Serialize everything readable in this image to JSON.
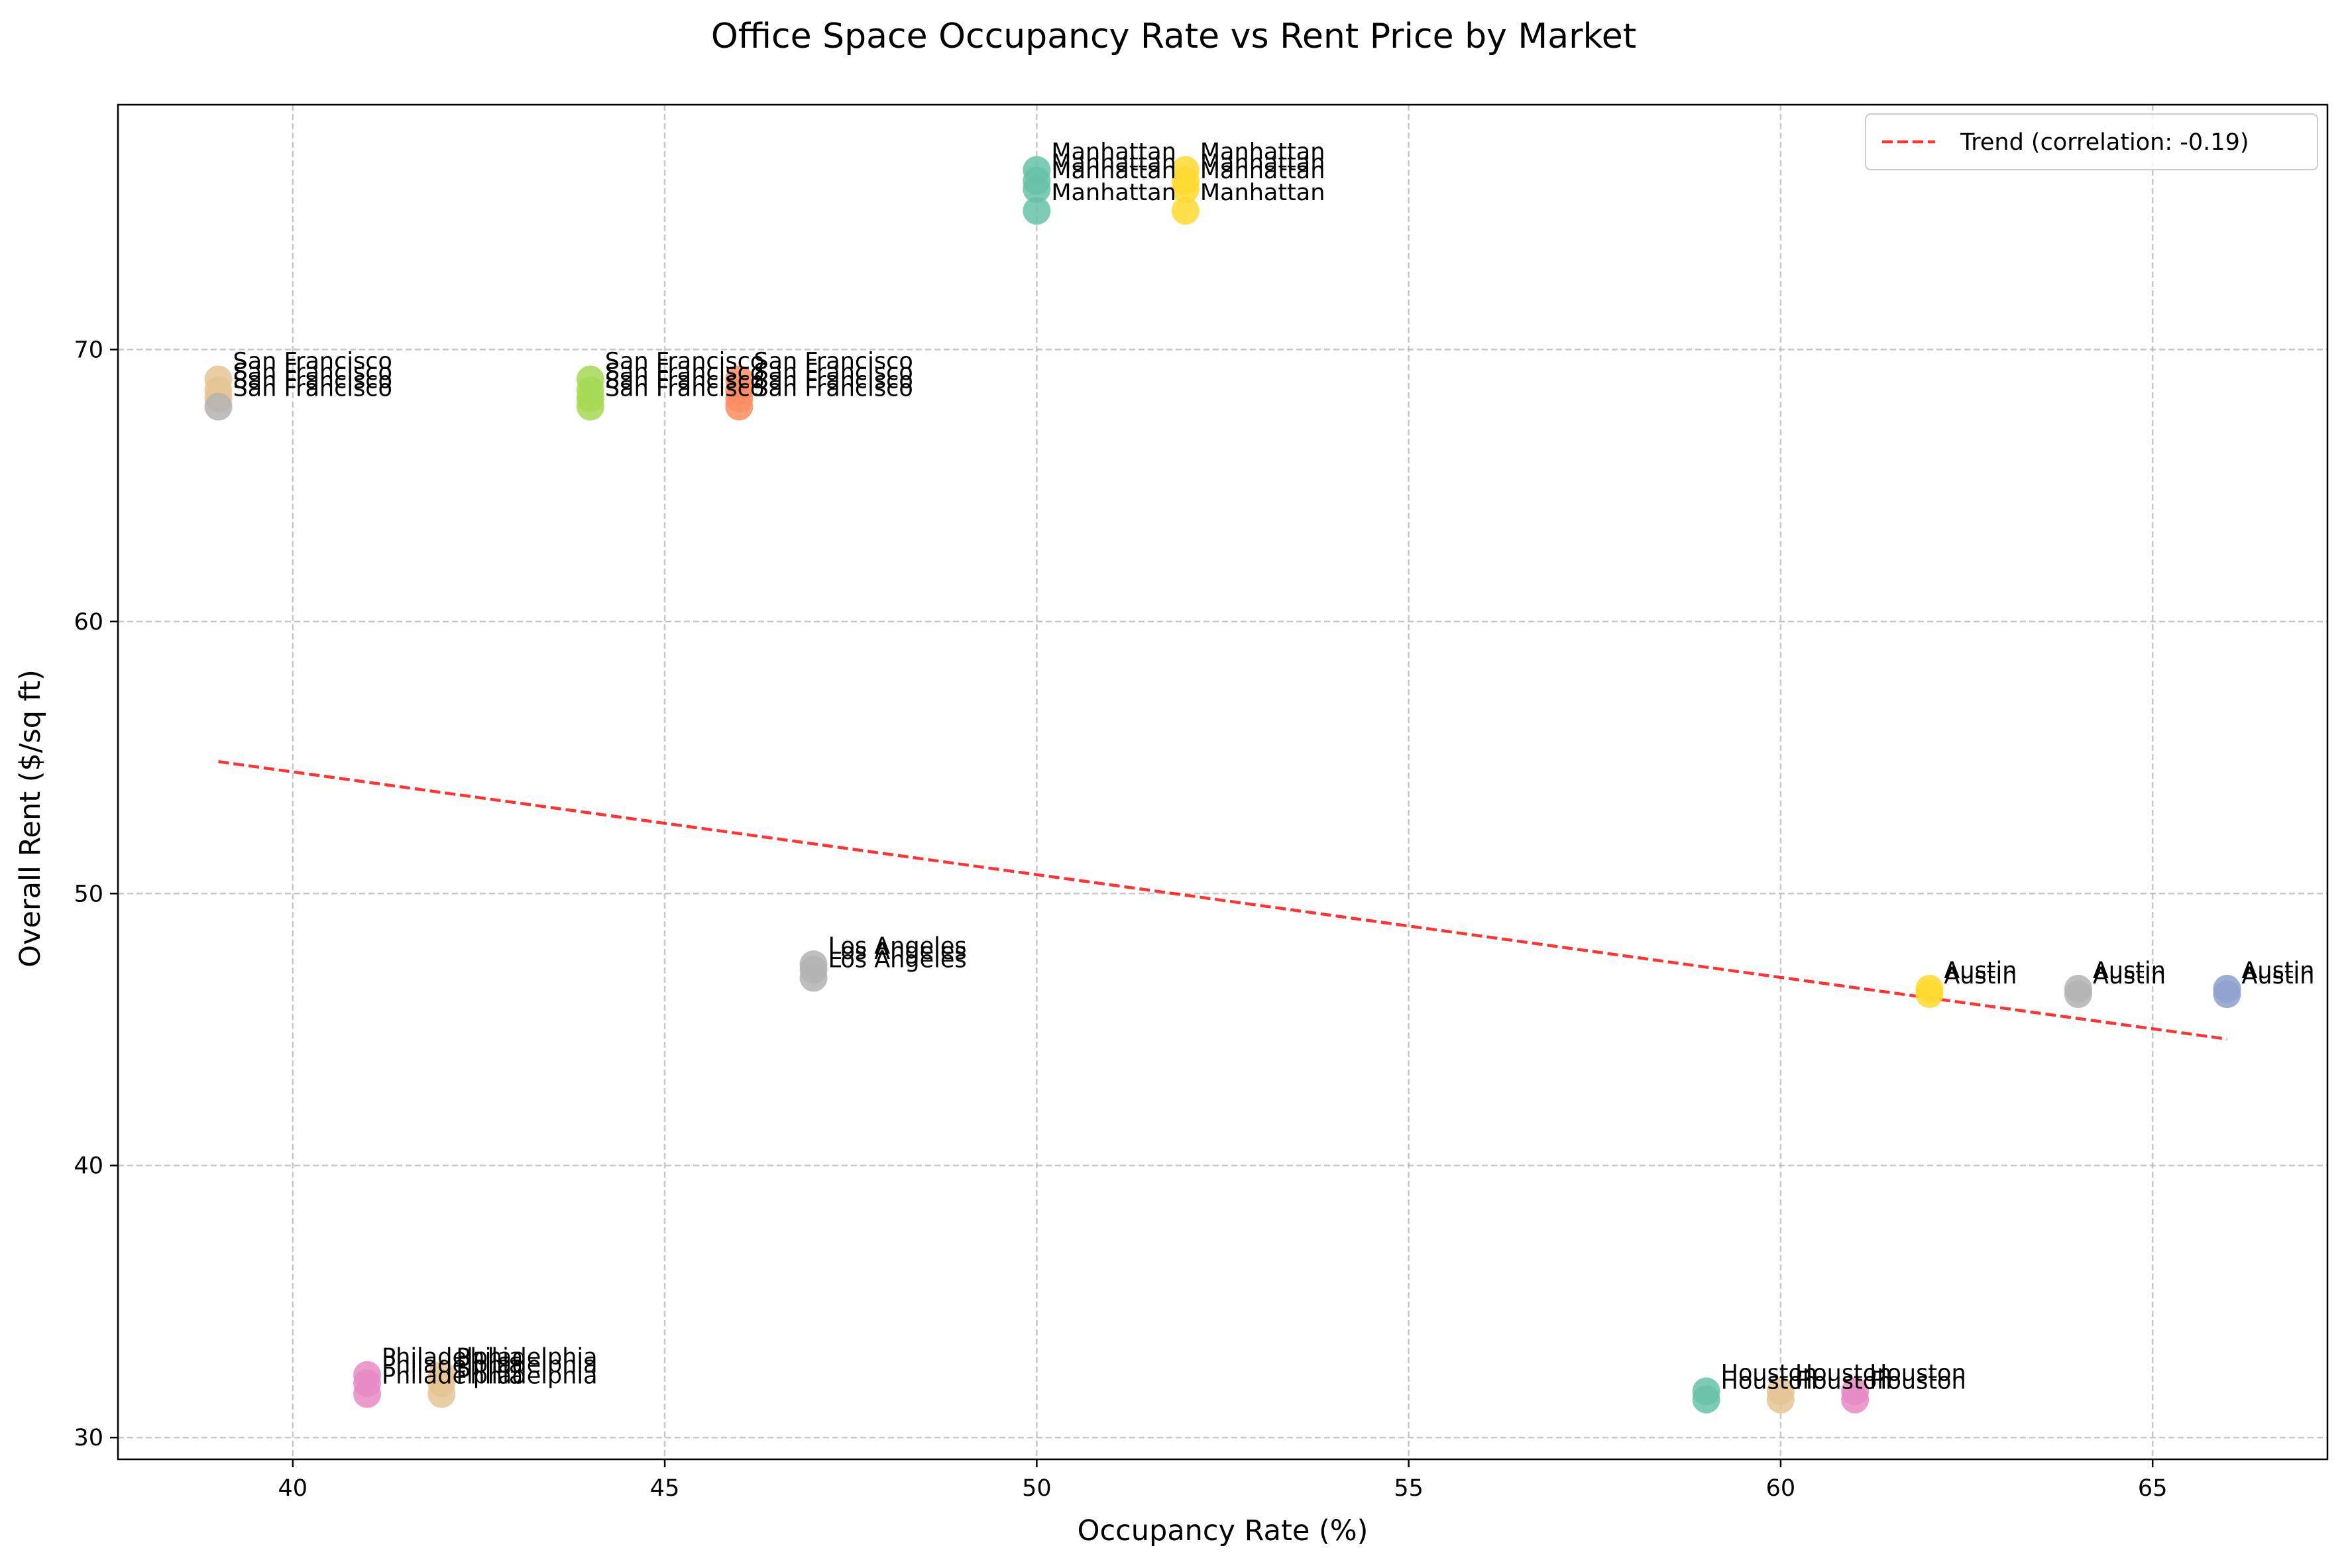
{
  "chart_data": {
    "type": "scatter",
    "title": "Office Space Occupancy Rate vs Rent Price by Market",
    "xlabel": "Occupancy Rate (%)",
    "ylabel": "Overall Rent ($/sq ft)",
    "xlim": [
      37.65,
      67.35
    ],
    "ylim": [
      29.2,
      79.0
    ],
    "xticks": [
      40,
      45,
      50,
      55,
      60,
      65
    ],
    "yticks": [
      30,
      40,
      50,
      60,
      70
    ],
    "grid": true,
    "legend_position": "top-right",
    "trend": {
      "label": "Trend (correlation: -0.19)",
      "x": [
        39,
        66
      ],
      "y": [
        54.85,
        44.65
      ],
      "color": "#ff0000"
    },
    "points": [
      {
        "x": 39,
        "y": 68.9,
        "label": "San Francisco",
        "color": "#e5c494"
      },
      {
        "x": 39,
        "y": 68.5,
        "label": "San Francisco",
        "color": "#e5c494"
      },
      {
        "x": 39,
        "y": 68.2,
        "label": "San Francisco",
        "color": "#e5c494"
      },
      {
        "x": 39,
        "y": 67.9,
        "label": "San Francisco",
        "color": "#b3b3b3"
      },
      {
        "x": 44,
        "y": 68.9,
        "label": "San Francisco",
        "color": "#a6d854"
      },
      {
        "x": 44,
        "y": 68.5,
        "label": "San Francisco",
        "color": "#a6d854"
      },
      {
        "x": 44,
        "y": 68.2,
        "label": "San Francisco",
        "color": "#a6d854"
      },
      {
        "x": 44,
        "y": 67.9,
        "label": "San Francisco",
        "color": "#a6d854"
      },
      {
        "x": 46,
        "y": 68.9,
        "label": "San Francisco",
        "color": "#fc8d62"
      },
      {
        "x": 46,
        "y": 68.5,
        "label": "San Francisco",
        "color": "#fc8d62"
      },
      {
        "x": 46,
        "y": 68.2,
        "label": "San Francisco",
        "color": "#fc8d62"
      },
      {
        "x": 46,
        "y": 67.9,
        "label": "San Francisco",
        "color": "#fc8d62"
      },
      {
        "x": 50,
        "y": 76.6,
        "label": "Manhattan",
        "color": "#66c2a5"
      },
      {
        "x": 50,
        "y": 76.2,
        "label": "Manhattan",
        "color": "#66c2a5"
      },
      {
        "x": 50,
        "y": 75.9,
        "label": "Manhattan",
        "color": "#66c2a5"
      },
      {
        "x": 50,
        "y": 75.1,
        "label": "Manhattan",
        "color": "#66c2a5"
      },
      {
        "x": 52,
        "y": 76.6,
        "label": "Manhattan",
        "color": "#ffd92f"
      },
      {
        "x": 52,
        "y": 76.2,
        "label": "Manhattan",
        "color": "#ffd92f"
      },
      {
        "x": 52,
        "y": 75.9,
        "label": "Manhattan",
        "color": "#ffd92f"
      },
      {
        "x": 52,
        "y": 75.1,
        "label": "Manhattan",
        "color": "#ffd92f"
      },
      {
        "x": 47,
        "y": 47.4,
        "label": "Los Angeles",
        "color": "#b3b3b3"
      },
      {
        "x": 47,
        "y": 47.2,
        "label": "Los Angeles",
        "color": "#b3b3b3"
      },
      {
        "x": 47,
        "y": 46.9,
        "label": "Los Angeles",
        "color": "#b3b3b3"
      },
      {
        "x": 62,
        "y": 46.5,
        "label": "Austin",
        "color": "#ffd92f"
      },
      {
        "x": 62,
        "y": 46.3,
        "label": "Austin",
        "color": "#ffd92f"
      },
      {
        "x": 64,
        "y": 46.5,
        "label": "Austin",
        "color": "#b3b3b3"
      },
      {
        "x": 64,
        "y": 46.3,
        "label": "Austin",
        "color": "#b3b3b3"
      },
      {
        "x": 66,
        "y": 46.5,
        "label": "Austin",
        "color": "#8da0cb"
      },
      {
        "x": 66,
        "y": 46.3,
        "label": "Austin",
        "color": "#8da0cb"
      },
      {
        "x": 41,
        "y": 32.3,
        "label": "Philadelphia",
        "color": "#e78ac3"
      },
      {
        "x": 41,
        "y": 32.0,
        "label": "Philadelphia",
        "color": "#e78ac3"
      },
      {
        "x": 41,
        "y": 31.6,
        "label": "Philadelphia",
        "color": "#e78ac3"
      },
      {
        "x": 42,
        "y": 32.3,
        "label": "Philadelphia",
        "color": "#e5c494"
      },
      {
        "x": 42,
        "y": 32.0,
        "label": "Philadelphia",
        "color": "#e5c494"
      },
      {
        "x": 42,
        "y": 31.6,
        "label": "Philadelphia",
        "color": "#e5c494"
      },
      {
        "x": 59,
        "y": 31.7,
        "label": "Houston",
        "color": "#66c2a5"
      },
      {
        "x": 59,
        "y": 31.4,
        "label": "Houston",
        "color": "#66c2a5"
      },
      {
        "x": 60,
        "y": 31.7,
        "label": "Houston",
        "color": "#e5c494"
      },
      {
        "x": 60,
        "y": 31.4,
        "label": "Houston",
        "color": "#e5c494"
      },
      {
        "x": 61,
        "y": 31.7,
        "label": "Houston",
        "color": "#e78ac3"
      },
      {
        "x": 61,
        "y": 31.4,
        "label": "Houston",
        "color": "#e78ac3"
      }
    ]
  }
}
